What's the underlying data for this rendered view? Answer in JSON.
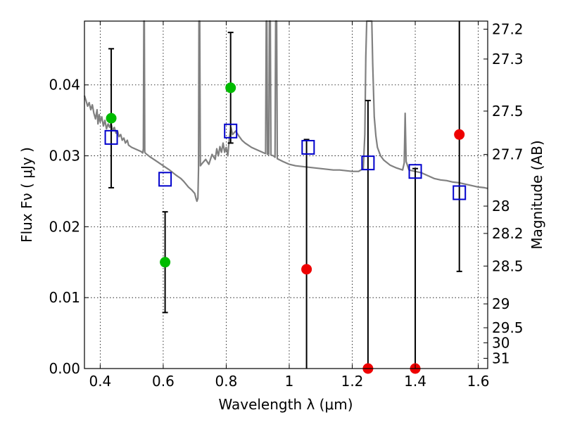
{
  "chart_data": {
    "type": "scatter",
    "xlabel": "Wavelength  λ (μm)",
    "ylabel": "Flux  Fν  ( μJy )",
    "y2label": "Magnitude (AB)",
    "xlim": [
      0.35,
      1.63
    ],
    "ylim": [
      0.0,
      0.049
    ],
    "grid": true,
    "x_ticks": [
      0.4,
      0.6,
      0.8,
      1.0,
      1.2,
      1.4,
      1.6
    ],
    "x_tick_labels": [
      "0.4",
      "0.6",
      "0.8",
      "1",
      "1.2",
      "1.4",
      "1.6"
    ],
    "y_ticks": [
      0.0,
      0.01,
      0.02,
      0.03,
      0.04
    ],
    "y_tick_labels": [
      "0.00",
      "0.01",
      "0.02",
      "0.03",
      "0.04"
    ],
    "mag_ticks": [
      "27.2",
      "27.3",
      "27.5",
      "27.7",
      "28",
      "28.2",
      "28.5",
      "29",
      "29.5",
      "30",
      "31"
    ],
    "colors": {
      "spectrum": "#808080",
      "model_box": "#0000cc",
      "detection": "#00bb00",
      "nondetection": "#ee0000",
      "errorbar": "#000000",
      "grid": "#000000"
    },
    "photometry": [
      {
        "x": 0.435,
        "y": 0.0353,
        "err_lo": 0.0098,
        "err_hi": 0.0098,
        "color_key": "detection"
      },
      {
        "x": 0.606,
        "y": 0.015,
        "err_lo": 0.0071,
        "err_hi": 0.0071,
        "color_key": "detection"
      },
      {
        "x": 0.814,
        "y": 0.0396,
        "err_lo": 0.0078,
        "err_hi": 0.0078,
        "color_key": "detection"
      },
      {
        "x": 1.055,
        "y": 0.014,
        "err_lo": 0.014,
        "err_hi": 0.0183,
        "color_key": "nondetection"
      },
      {
        "x": 1.25,
        "y": 0.0,
        "err_lo": 0.0,
        "err_hi": 0.0378,
        "color_key": "nondetection"
      },
      {
        "x": 1.4,
        "y": 0.0,
        "err_lo": 0.0,
        "err_hi": 0.0282,
        "color_key": "nondetection"
      },
      {
        "x": 1.54,
        "y": 0.033,
        "err_lo": 0.0193,
        "err_hi": 0.0165,
        "color_key": "nondetection"
      }
    ],
    "model_photometry": [
      {
        "x": 0.435,
        "y": 0.0326
      },
      {
        "x": 0.606,
        "y": 0.0267
      },
      {
        "x": 0.814,
        "y": 0.0335
      },
      {
        "x": 1.06,
        "y": 0.0312
      },
      {
        "x": 1.25,
        "y": 0.029
      },
      {
        "x": 1.4,
        "y": 0.0278
      },
      {
        "x": 1.54,
        "y": 0.0248
      }
    ],
    "spectrum": [
      [
        0.35,
        0.0385
      ],
      [
        0.355,
        0.0378
      ],
      [
        0.36,
        0.037
      ],
      [
        0.365,
        0.0375
      ],
      [
        0.37,
        0.0365
      ],
      [
        0.375,
        0.0372
      ],
      [
        0.38,
        0.036
      ],
      [
        0.385,
        0.0352
      ],
      [
        0.39,
        0.0365
      ],
      [
        0.393,
        0.0345
      ],
      [
        0.397,
        0.0358
      ],
      [
        0.4,
        0.0348
      ],
      [
        0.405,
        0.0355
      ],
      [
        0.41,
        0.0342
      ],
      [
        0.415,
        0.035
      ],
      [
        0.42,
        0.0338
      ],
      [
        0.425,
        0.0345
      ],
      [
        0.43,
        0.034
      ],
      [
        0.434,
        0.0346
      ],
      [
        0.44,
        0.0336
      ],
      [
        0.445,
        0.034
      ],
      [
        0.45,
        0.0332
      ],
      [
        0.455,
        0.0335
      ],
      [
        0.46,
        0.0327
      ],
      [
        0.465,
        0.033
      ],
      [
        0.47,
        0.0322
      ],
      [
        0.475,
        0.0325
      ],
      [
        0.48,
        0.0318
      ],
      [
        0.486,
        0.0322
      ],
      [
        0.49,
        0.0315
      ],
      [
        0.5,
        0.0312
      ],
      [
        0.51,
        0.031
      ],
      [
        0.52,
        0.0308
      ],
      [
        0.53,
        0.0306
      ],
      [
        0.535,
        0.0304
      ],
      [
        0.537,
        0.031
      ],
      [
        0.5385,
        0.049
      ],
      [
        0.54,
        0.049
      ],
      [
        0.5415,
        0.0305
      ],
      [
        0.545,
        0.0303
      ],
      [
        0.56,
        0.0298
      ],
      [
        0.58,
        0.0292
      ],
      [
        0.6,
        0.0286
      ],
      [
        0.62,
        0.028
      ],
      [
        0.64,
        0.0273
      ],
      [
        0.656,
        0.0268
      ],
      [
        0.665,
        0.0264
      ],
      [
        0.68,
        0.0256
      ],
      [
        0.69,
        0.0252
      ],
      [
        0.7,
        0.0247
      ],
      [
        0.704,
        0.024
      ],
      [
        0.707,
        0.0236
      ],
      [
        0.71,
        0.024
      ],
      [
        0.712,
        0.0282
      ],
      [
        0.7135,
        0.049
      ],
      [
        0.716,
        0.049
      ],
      [
        0.718,
        0.0286
      ],
      [
        0.725,
        0.029
      ],
      [
        0.735,
        0.0295
      ],
      [
        0.745,
        0.0288
      ],
      [
        0.755,
        0.0302
      ],
      [
        0.765,
        0.0295
      ],
      [
        0.77,
        0.031
      ],
      [
        0.775,
        0.03
      ],
      [
        0.78,
        0.0313
      ],
      [
        0.785,
        0.0305
      ],
      [
        0.79,
        0.0318
      ],
      [
        0.795,
        0.0305
      ],
      [
        0.8,
        0.0312
      ],
      [
        0.805,
        0.03
      ],
      [
        0.81,
        0.0325
      ],
      [
        0.815,
        0.034
      ],
      [
        0.82,
        0.033
      ],
      [
        0.83,
        0.0335
      ],
      [
        0.84,
        0.0328
      ],
      [
        0.85,
        0.0322
      ],
      [
        0.86,
        0.0318
      ],
      [
        0.87,
        0.0315
      ],
      [
        0.88,
        0.0312
      ],
      [
        0.89,
        0.031
      ],
      [
        0.9,
        0.0308
      ],
      [
        0.91,
        0.0306
      ],
      [
        0.92,
        0.0304
      ],
      [
        0.925,
        0.0303
      ],
      [
        0.927,
        0.049
      ],
      [
        0.929,
        0.049
      ],
      [
        0.931,
        0.0302
      ],
      [
        0.935,
        0.0302
      ],
      [
        0.937,
        0.049
      ],
      [
        0.94,
        0.049
      ],
      [
        0.942,
        0.0301
      ],
      [
        0.95,
        0.03
      ],
      [
        0.955,
        0.0298
      ],
      [
        0.957,
        0.049
      ],
      [
        0.96,
        0.049
      ],
      [
        0.962,
        0.0296
      ],
      [
        0.98,
        0.0292
      ],
      [
        1.0,
        0.0288
      ],
      [
        1.02,
        0.0286
      ],
      [
        1.04,
        0.0285
      ],
      [
        1.06,
        0.0284
      ],
      [
        1.08,
        0.0283
      ],
      [
        1.1,
        0.0282
      ],
      [
        1.12,
        0.0281
      ],
      [
        1.14,
        0.028
      ],
      [
        1.16,
        0.028
      ],
      [
        1.18,
        0.0279
      ],
      [
        1.2,
        0.0278
      ],
      [
        1.22,
        0.0278
      ],
      [
        1.235,
        0.0282
      ],
      [
        1.24,
        0.033
      ],
      [
        1.243,
        0.044
      ],
      [
        1.246,
        0.049
      ],
      [
        1.262,
        0.049
      ],
      [
        1.265,
        0.043
      ],
      [
        1.27,
        0.0355
      ],
      [
        1.275,
        0.0328
      ],
      [
        1.28,
        0.0312
      ],
      [
        1.29,
        0.03
      ],
      [
        1.3,
        0.0294
      ],
      [
        1.32,
        0.0287
      ],
      [
        1.34,
        0.0283
      ],
      [
        1.36,
        0.028
      ],
      [
        1.365,
        0.029
      ],
      [
        1.368,
        0.036
      ],
      [
        1.371,
        0.0292
      ],
      [
        1.38,
        0.028
      ],
      [
        1.4,
        0.0278
      ],
      [
        1.42,
        0.0276
      ],
      [
        1.44,
        0.0272
      ],
      [
        1.46,
        0.0268
      ],
      [
        1.48,
        0.0266
      ],
      [
        1.5,
        0.0265
      ],
      [
        1.52,
        0.0263
      ],
      [
        1.54,
        0.0262
      ],
      [
        1.56,
        0.026
      ],
      [
        1.58,
        0.0258
      ],
      [
        1.6,
        0.0256
      ],
      [
        1.62,
        0.0255
      ],
      [
        1.63,
        0.0254
      ]
    ]
  }
}
